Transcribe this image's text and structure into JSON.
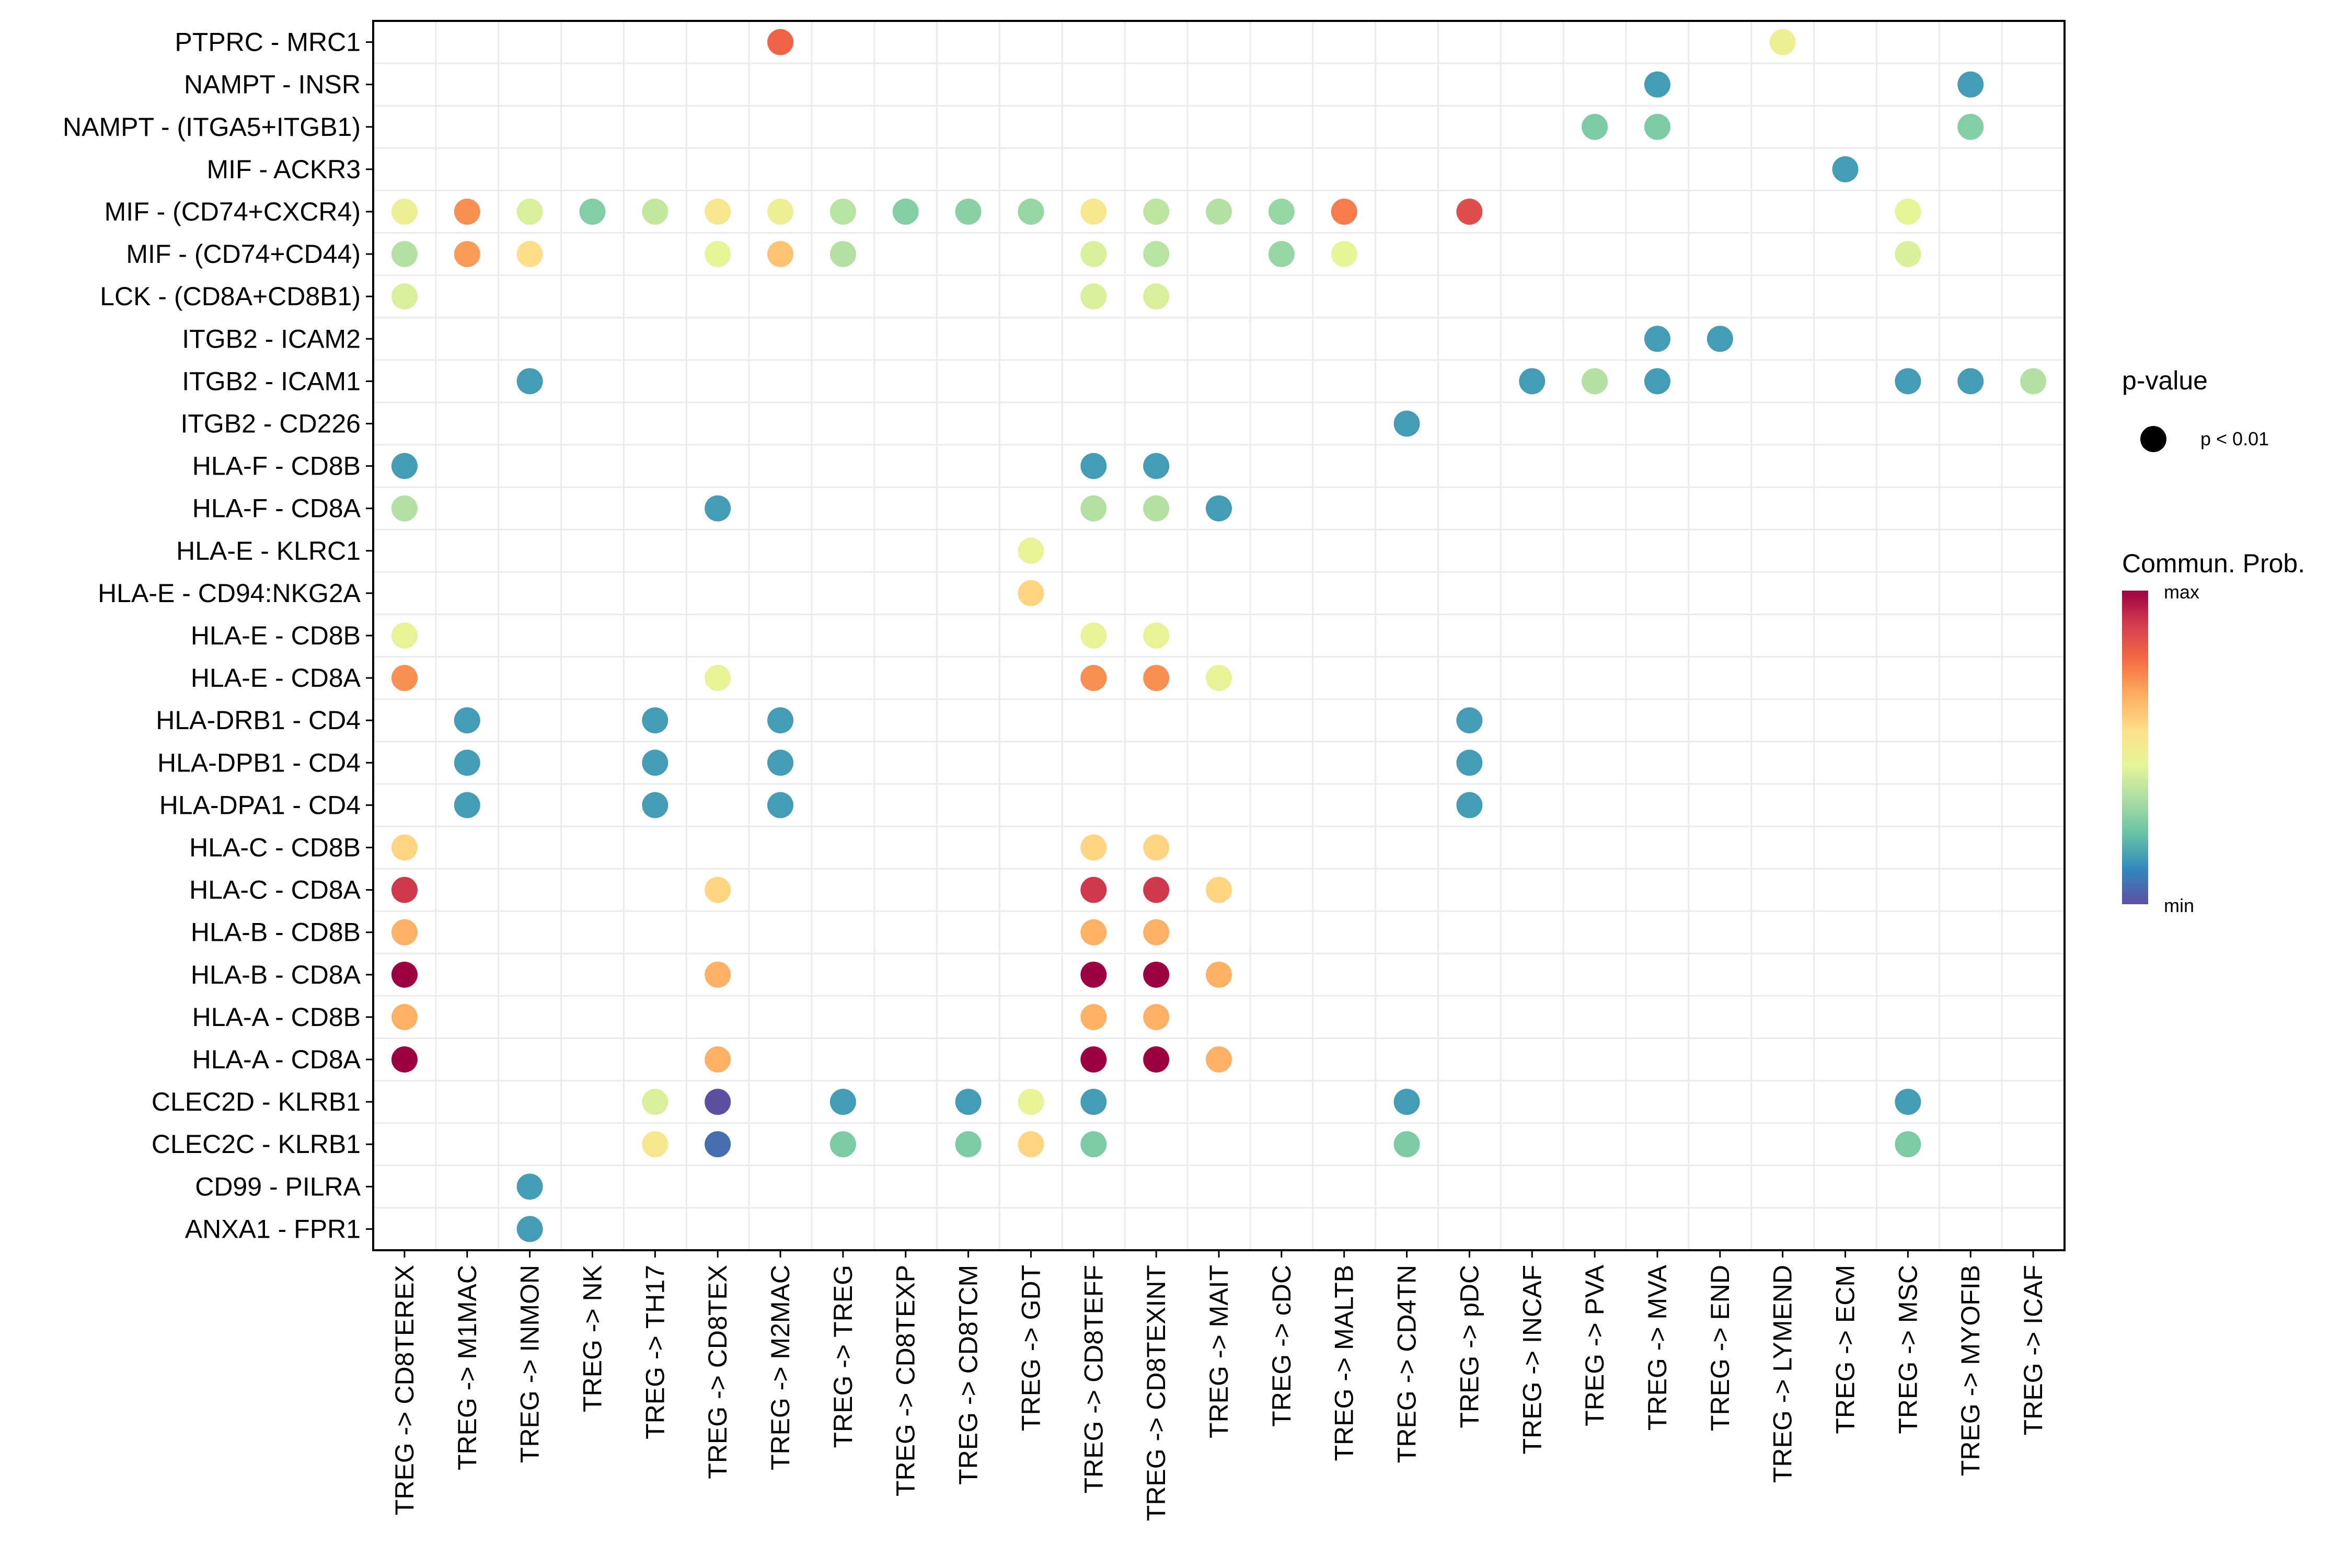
{
  "chart_data": {
    "type": "scatter",
    "subtype": "dot-plot (CellChat bubble)",
    "title": "",
    "xlabel": "",
    "ylabel": "",
    "grid": true,
    "x_categories": [
      "TREG -> CD8TEREX",
      "TREG -> M1MAC",
      "TREG -> INMON",
      "TREG -> NK",
      "TREG -> TH17",
      "TREG -> CD8TEX",
      "TREG -> M2MAC",
      "TREG -> TREG",
      "TREG -> CD8TEXP",
      "TREG -> CD8TCM",
      "TREG -> GDT",
      "TREG -> CD8TEFF",
      "TREG -> CD8TEXINT",
      "TREG -> MAIT",
      "TREG -> cDC",
      "TREG -> MALTB",
      "TREG -> CD4TN",
      "TREG -> pDC",
      "TREG -> INCAF",
      "TREG -> PVA",
      "TREG -> MVA",
      "TREG -> END",
      "TREG -> LYMEND",
      "TREG -> ECM",
      "TREG -> MSC",
      "TREG -> MYOFIB",
      "TREG -> ICAF"
    ],
    "y_categories": [
      "PTPRC - MRC1",
      "NAMPT - INSR",
      "NAMPT - (ITGA5+ITGB1)",
      "MIF - ACKR3",
      "MIF - (CD74+CXCR4)",
      "MIF - (CD74+CD44)",
      "LCK - (CD8A+CD8B1)",
      "ITGB2 - ICAM2",
      "ITGB2 - ICAM1",
      "ITGB2 - CD226",
      "HLA-F - CD8B",
      "HLA-F - CD8A",
      "HLA-E - KLRC1",
      "HLA-E - CD94:NKG2A",
      "HLA-E - CD8B",
      "HLA-E - CD8A",
      "HLA-DRB1 - CD4",
      "HLA-DPB1 - CD4",
      "HLA-DPA1 - CD4",
      "HLA-C - CD8B",
      "HLA-C - CD8A",
      "HLA-B - CD8B",
      "HLA-B - CD8A",
      "HLA-A - CD8B",
      "HLA-A - CD8A",
      "CLEC2D - KLRB1",
      "CLEC2C - KLRB1",
      "CD99 - PILRA",
      "ANXA1 - FPR1"
    ],
    "value_scale": "Commun. Prob. normalized 0 (min) to 1 (max), estimated from color",
    "points": [
      {
        "y": "PTPRC - MRC1",
        "x": "TREG -> M2MAC",
        "value": 0.8
      },
      {
        "y": "PTPRC - MRC1",
        "x": "TREG -> LYMEND",
        "value": 0.48
      },
      {
        "y": "NAMPT - INSR",
        "x": "TREG -> MVA",
        "value": 0.15
      },
      {
        "y": "NAMPT - INSR",
        "x": "TREG -> MYOFIB",
        "value": 0.15
      },
      {
        "y": "NAMPT - (ITGA5+ITGB1)",
        "x": "TREG -> PVA",
        "value": 0.26
      },
      {
        "y": "NAMPT - (ITGA5+ITGB1)",
        "x": "TREG -> MVA",
        "value": 0.26
      },
      {
        "y": "NAMPT - (ITGA5+ITGB1)",
        "x": "TREG -> MYOFIB",
        "value": 0.27
      },
      {
        "y": "MIF - ACKR3",
        "x": "TREG -> ECM",
        "value": 0.15
      },
      {
        "y": "MIF - (CD74+CXCR4)",
        "x": "TREG -> CD8TEREX",
        "value": 0.48
      },
      {
        "y": "MIF - (CD74+CXCR4)",
        "x": "TREG -> M1MAC",
        "value": 0.72
      },
      {
        "y": "MIF - (CD74+CXCR4)",
        "x": "TREG -> INMON",
        "value": 0.42
      },
      {
        "y": "MIF - (CD74+CXCR4)",
        "x": "TREG -> NK",
        "value": 0.27
      },
      {
        "y": "MIF - (CD74+CXCR4)",
        "x": "TREG -> TH17",
        "value": 0.38
      },
      {
        "y": "MIF - (CD74+CXCR4)",
        "x": "TREG -> CD8TEX",
        "value": 0.52
      },
      {
        "y": "MIF - (CD74+CXCR4)",
        "x": "TREG -> M2MAC",
        "value": 0.48
      },
      {
        "y": "MIF - (CD74+CXCR4)",
        "x": "TREG -> TREG",
        "value": 0.36
      },
      {
        "y": "MIF - (CD74+CXCR4)",
        "x": "TREG -> CD8TEXP",
        "value": 0.27
      },
      {
        "y": "MIF - (CD74+CXCR4)",
        "x": "TREG -> CD8TCM",
        "value": 0.28
      },
      {
        "y": "MIF - (CD74+CXCR4)",
        "x": "TREG -> GDT",
        "value": 0.3
      },
      {
        "y": "MIF - (CD74+CXCR4)",
        "x": "TREG -> CD8TEFF",
        "value": 0.52
      },
      {
        "y": "MIF - (CD74+CXCR4)",
        "x": "TREG -> CD8TEXINT",
        "value": 0.37
      },
      {
        "y": "MIF - (CD74+CXCR4)",
        "x": "TREG -> MAIT",
        "value": 0.35
      },
      {
        "y": "MIF - (CD74+CXCR4)",
        "x": "TREG -> cDC",
        "value": 0.3
      },
      {
        "y": "MIF - (CD74+CXCR4)",
        "x": "TREG -> MALTB",
        "value": 0.75
      },
      {
        "y": "MIF - (CD74+CXCR4)",
        "x": "TREG -> pDC",
        "value": 0.85
      },
      {
        "y": "MIF - (CD74+CXCR4)",
        "x": "TREG -> MSC",
        "value": 0.45
      },
      {
        "y": "MIF - (CD74+CD44)",
        "x": "TREG -> CD8TEREX",
        "value": 0.35
      },
      {
        "y": "MIF - (CD74+CD44)",
        "x": "TREG -> M1MAC",
        "value": 0.7
      },
      {
        "y": "MIF - (CD74+CD44)",
        "x": "TREG -> INMON",
        "value": 0.56
      },
      {
        "y": "MIF - (CD74+CD44)",
        "x": "TREG -> CD8TEX",
        "value": 0.45
      },
      {
        "y": "MIF - (CD74+CD44)",
        "x": "TREG -> M2MAC",
        "value": 0.62
      },
      {
        "y": "MIF - (CD74+CD44)",
        "x": "TREG -> TREG",
        "value": 0.35
      },
      {
        "y": "MIF - (CD74+CD44)",
        "x": "TREG -> CD8TEFF",
        "value": 0.42
      },
      {
        "y": "MIF - (CD74+CD44)",
        "x": "TREG -> CD8TEXINT",
        "value": 0.36
      },
      {
        "y": "MIF - (CD74+CD44)",
        "x": "TREG -> cDC",
        "value": 0.3
      },
      {
        "y": "MIF - (CD74+CD44)",
        "x": "TREG -> MALTB",
        "value": 0.45
      },
      {
        "y": "MIF - (CD74+CD44)",
        "x": "TREG -> MSC",
        "value": 0.42
      },
      {
        "y": "LCK - (CD8A+CD8B1)",
        "x": "TREG -> CD8TEREX",
        "value": 0.42
      },
      {
        "y": "LCK - (CD8A+CD8B1)",
        "x": "TREG -> CD8TEFF",
        "value": 0.42
      },
      {
        "y": "LCK - (CD8A+CD8B1)",
        "x": "TREG -> CD8TEXINT",
        "value": 0.42
      },
      {
        "y": "ITGB2 - ICAM2",
        "x": "TREG -> MVA",
        "value": 0.15
      },
      {
        "y": "ITGB2 - ICAM2",
        "x": "TREG -> END",
        "value": 0.15
      },
      {
        "y": "ITGB2 - ICAM1",
        "x": "TREG -> INMON",
        "value": 0.15
      },
      {
        "y": "ITGB2 - ICAM1",
        "x": "TREG -> INCAF",
        "value": 0.15
      },
      {
        "y": "ITGB2 - ICAM1",
        "x": "TREG -> PVA",
        "value": 0.35
      },
      {
        "y": "ITGB2 - ICAM1",
        "x": "TREG -> MVA",
        "value": 0.15
      },
      {
        "y": "ITGB2 - ICAM1",
        "x": "TREG -> MSC",
        "value": 0.15
      },
      {
        "y": "ITGB2 - ICAM1",
        "x": "TREG -> MYOFIB",
        "value": 0.15
      },
      {
        "y": "ITGB2 - ICAM1",
        "x": "TREG -> ICAF",
        "value": 0.35
      },
      {
        "y": "ITGB2 - CD226",
        "x": "TREG -> CD4TN",
        "value": 0.15
      },
      {
        "y": "HLA-F - CD8B",
        "x": "TREG -> CD8TEREX",
        "value": 0.15
      },
      {
        "y": "HLA-F - CD8B",
        "x": "TREG -> CD8TEFF",
        "value": 0.15
      },
      {
        "y": "HLA-F - CD8B",
        "x": "TREG -> CD8TEXINT",
        "value": 0.15
      },
      {
        "y": "HLA-F - CD8A",
        "x": "TREG -> CD8TEREX",
        "value": 0.35
      },
      {
        "y": "HLA-F - CD8A",
        "x": "TREG -> CD8TEX",
        "value": 0.15
      },
      {
        "y": "HLA-F - CD8A",
        "x": "TREG -> CD8TEFF",
        "value": 0.35
      },
      {
        "y": "HLA-F - CD8A",
        "x": "TREG -> CD8TEXINT",
        "value": 0.35
      },
      {
        "y": "HLA-F - CD8A",
        "x": "TREG -> MAIT",
        "value": 0.15
      },
      {
        "y": "HLA-E - KLRC1",
        "x": "TREG -> GDT",
        "value": 0.46
      },
      {
        "y": "HLA-E - CD94:NKG2A",
        "x": "TREG -> GDT",
        "value": 0.58
      },
      {
        "y": "HLA-E - CD8B",
        "x": "TREG -> CD8TEREX",
        "value": 0.46
      },
      {
        "y": "HLA-E - CD8B",
        "x": "TREG -> CD8TEFF",
        "value": 0.46
      },
      {
        "y": "HLA-E - CD8B",
        "x": "TREG -> CD8TEXINT",
        "value": 0.46
      },
      {
        "y": "HLA-E - CD8A",
        "x": "TREG -> CD8TEREX",
        "value": 0.72
      },
      {
        "y": "HLA-E - CD8A",
        "x": "TREG -> CD8TEX",
        "value": 0.46
      },
      {
        "y": "HLA-E - CD8A",
        "x": "TREG -> CD8TEFF",
        "value": 0.72
      },
      {
        "y": "HLA-E - CD8A",
        "x": "TREG -> CD8TEXINT",
        "value": 0.72
      },
      {
        "y": "HLA-E - CD8A",
        "x": "TREG -> MAIT",
        "value": 0.46
      },
      {
        "y": "HLA-DRB1 - CD4",
        "x": "TREG -> M1MAC",
        "value": 0.15
      },
      {
        "y": "HLA-DRB1 - CD4",
        "x": "TREG -> TH17",
        "value": 0.15
      },
      {
        "y": "HLA-DRB1 - CD4",
        "x": "TREG -> M2MAC",
        "value": 0.15
      },
      {
        "y": "HLA-DRB1 - CD4",
        "x": "TREG -> pDC",
        "value": 0.15
      },
      {
        "y": "HLA-DPB1 - CD4",
        "x": "TREG -> M1MAC",
        "value": 0.15
      },
      {
        "y": "HLA-DPB1 - CD4",
        "x": "TREG -> TH17",
        "value": 0.15
      },
      {
        "y": "HLA-DPB1 - CD4",
        "x": "TREG -> M2MAC",
        "value": 0.15
      },
      {
        "y": "HLA-DPB1 - CD4",
        "x": "TREG -> pDC",
        "value": 0.15
      },
      {
        "y": "HLA-DPA1 - CD4",
        "x": "TREG -> M1MAC",
        "value": 0.15
      },
      {
        "y": "HLA-DPA1 - CD4",
        "x": "TREG -> TH17",
        "value": 0.15
      },
      {
        "y": "HLA-DPA1 - CD4",
        "x": "TREG -> M2MAC",
        "value": 0.15
      },
      {
        "y": "HLA-DPA1 - CD4",
        "x": "TREG -> pDC",
        "value": 0.15
      },
      {
        "y": "HLA-C - CD8B",
        "x": "TREG -> CD8TEREX",
        "value": 0.58
      },
      {
        "y": "HLA-C - CD8B",
        "x": "TREG -> CD8TEFF",
        "value": 0.58
      },
      {
        "y": "HLA-C - CD8B",
        "x": "TREG -> CD8TEXINT",
        "value": 0.58
      },
      {
        "y": "HLA-C - CD8A",
        "x": "TREG -> CD8TEREX",
        "value": 0.9
      },
      {
        "y": "HLA-C - CD8A",
        "x": "TREG -> CD8TEX",
        "value": 0.58
      },
      {
        "y": "HLA-C - CD8A",
        "x": "TREG -> CD8TEFF",
        "value": 0.9
      },
      {
        "y": "HLA-C - CD8A",
        "x": "TREG -> CD8TEXINT",
        "value": 0.9
      },
      {
        "y": "HLA-C - CD8A",
        "x": "TREG -> MAIT",
        "value": 0.58
      },
      {
        "y": "HLA-B - CD8B",
        "x": "TREG -> CD8TEREX",
        "value": 0.66
      },
      {
        "y": "HLA-B - CD8B",
        "x": "TREG -> CD8TEFF",
        "value": 0.66
      },
      {
        "y": "HLA-B - CD8B",
        "x": "TREG -> CD8TEXINT",
        "value": 0.66
      },
      {
        "y": "HLA-B - CD8A",
        "x": "TREG -> CD8TEREX",
        "value": 1.0
      },
      {
        "y": "HLA-B - CD8A",
        "x": "TREG -> CD8TEX",
        "value": 0.66
      },
      {
        "y": "HLA-B - CD8A",
        "x": "TREG -> CD8TEFF",
        "value": 1.0
      },
      {
        "y": "HLA-B - CD8A",
        "x": "TREG -> CD8TEXINT",
        "value": 1.0
      },
      {
        "y": "HLA-B - CD8A",
        "x": "TREG -> MAIT",
        "value": 0.66
      },
      {
        "y": "HLA-A - CD8B",
        "x": "TREG -> CD8TEREX",
        "value": 0.66
      },
      {
        "y": "HLA-A - CD8B",
        "x": "TREG -> CD8TEFF",
        "value": 0.66
      },
      {
        "y": "HLA-A - CD8B",
        "x": "TREG -> CD8TEXINT",
        "value": 0.66
      },
      {
        "y": "HLA-A - CD8A",
        "x": "TREG -> CD8TEREX",
        "value": 1.0
      },
      {
        "y": "HLA-A - CD8A",
        "x": "TREG -> CD8TEX",
        "value": 0.66
      },
      {
        "y": "HLA-A - CD8A",
        "x": "TREG -> CD8TEFF",
        "value": 1.0
      },
      {
        "y": "HLA-A - CD8A",
        "x": "TREG -> CD8TEXINT",
        "value": 1.0
      },
      {
        "y": "HLA-A - CD8A",
        "x": "TREG -> MAIT",
        "value": 0.66
      },
      {
        "y": "CLEC2D - KLRB1",
        "x": "TREG -> TH17",
        "value": 0.42
      },
      {
        "y": "CLEC2D - KLRB1",
        "x": "TREG -> CD8TEX",
        "value": 0.0
      },
      {
        "y": "CLEC2D - KLRB1",
        "x": "TREG -> TREG",
        "value": 0.15
      },
      {
        "y": "CLEC2D - KLRB1",
        "x": "TREG -> CD8TCM",
        "value": 0.15
      },
      {
        "y": "CLEC2D - KLRB1",
        "x": "TREG -> GDT",
        "value": 0.46
      },
      {
        "y": "CLEC2D - KLRB1",
        "x": "TREG -> CD8TEFF",
        "value": 0.15
      },
      {
        "y": "CLEC2D - KLRB1",
        "x": "TREG -> CD4TN",
        "value": 0.15
      },
      {
        "y": "CLEC2D - KLRB1",
        "x": "TREG -> MSC",
        "value": 0.15
      },
      {
        "y": "CLEC2C - KLRB1",
        "x": "TREG -> TH17",
        "value": 0.52
      },
      {
        "y": "CLEC2C - KLRB1",
        "x": "TREG -> CD8TEX",
        "value": 0.06
      },
      {
        "y": "CLEC2C - KLRB1",
        "x": "TREG -> TREG",
        "value": 0.26
      },
      {
        "y": "CLEC2C - KLRB1",
        "x": "TREG -> CD8TCM",
        "value": 0.26
      },
      {
        "y": "CLEC2C - KLRB1",
        "x": "TREG -> GDT",
        "value": 0.58
      },
      {
        "y": "CLEC2C - KLRB1",
        "x": "TREG -> CD8TEFF",
        "value": 0.26
      },
      {
        "y": "CLEC2C - KLRB1",
        "x": "TREG -> CD4TN",
        "value": 0.26
      },
      {
        "y": "CLEC2C - KLRB1",
        "x": "TREG -> MSC",
        "value": 0.26
      },
      {
        "y": "CD99 - PILRA",
        "x": "TREG -> INMON",
        "value": 0.15
      },
      {
        "y": "ANXA1 - FPR1",
        "x": "TREG -> INMON",
        "value": 0.15
      }
    ],
    "legend": {
      "placement": "right",
      "pvalue": {
        "title": "p-value",
        "entries": [
          "p < 0.01"
        ]
      },
      "colorbar": {
        "title": "Commun. Prob.",
        "max_label": "max",
        "min_label": "min",
        "palette": "Spectral (reversed)",
        "colors": [
          "#5E4FA2",
          "#3288BD",
          "#66C2A5",
          "#ABDDA4",
          "#E6F598",
          "#FEE08B",
          "#FDAE61",
          "#F46D43",
          "#D53E4F",
          "#9E0142"
        ]
      }
    }
  }
}
